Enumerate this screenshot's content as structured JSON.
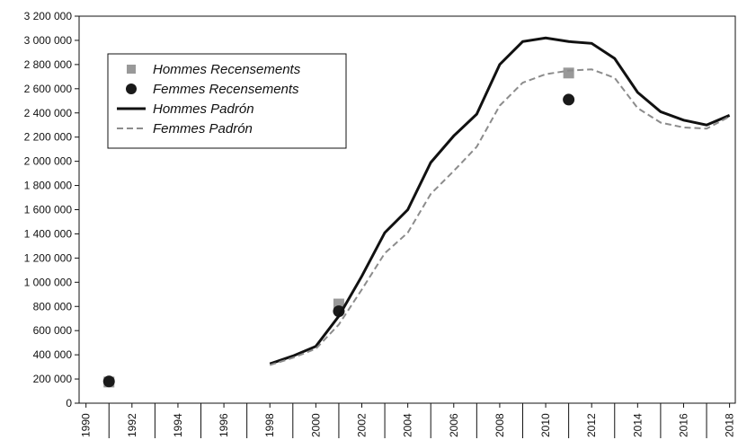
{
  "chart_data": {
    "type": "line",
    "xlim": [
      1989.7,
      2018.25
    ],
    "xticks": [
      1990,
      1992,
      1994,
      1996,
      1998,
      2000,
      2002,
      2004,
      2006,
      2008,
      2010,
      2012,
      2014,
      2016,
      2018
    ],
    "ylim": [
      0,
      3200000
    ],
    "yticks": [
      0,
      {
        "value": 200000,
        "label": "200 000"
      },
      {
        "value": 400000,
        "label": "400 000"
      },
      {
        "value": 600000,
        "label": "600 000"
      },
      {
        "value": 800000,
        "label": "800 000"
      },
      {
        "value": 1000000,
        "label": "1 000 000"
      },
      {
        "value": 1200000,
        "label": "1 200 000"
      },
      {
        "value": 1400000,
        "label": "1 400 000"
      },
      {
        "value": 1600000,
        "label": "1 600 000"
      },
      {
        "value": 1800000,
        "label": "1 800 000"
      },
      {
        "value": 2000000,
        "label": "2 000 000"
      },
      {
        "value": 2200000,
        "label": "2 200 000"
      },
      {
        "value": 2400000,
        "label": "2 400 000"
      },
      {
        "value": 2600000,
        "label": "2 600 000"
      },
      {
        "value": 2800000,
        "label": "2 800 000"
      },
      {
        "value": 3000000,
        "label": "3 000 000"
      },
      {
        "value": 3200000,
        "label": "3 200 000"
      }
    ],
    "series": [
      {
        "name": "Hommes Recensements",
        "color": "#999999",
        "style": "square",
        "x": [
          1991,
          2001,
          2011
        ],
        "values": [
          175000,
          820000,
          2730000
        ]
      },
      {
        "name": "Femmes Recensements",
        "color": "#1a1a1a",
        "style": "circle",
        "x": [
          1991,
          2001,
          2011
        ],
        "values": [
          180000,
          760000,
          2510000
        ]
      },
      {
        "name": "Hommes Padrón",
        "color": "#111111",
        "style": "solid",
        "x": [
          1998,
          1999,
          2000,
          2001,
          2002,
          2003,
          2004,
          2005,
          2006,
          2007,
          2008,
          2009,
          2010,
          2011,
          2012,
          2013,
          2014,
          2015,
          2016,
          2017,
          2018
        ],
        "values": [
          325000,
          390000,
          470000,
          720000,
          1050000,
          1410000,
          1600000,
          1990000,
          2210000,
          2390000,
          2800000,
          2990000,
          3020000,
          2990000,
          2975000,
          2850000,
          2570000,
          2410000,
          2340000,
          2300000,
          2380000
        ]
      },
      {
        "name": "Femmes Padrón",
        "color": "#8c8c8c",
        "style": "dashed",
        "x": [
          1998,
          1999,
          2000,
          2001,
          2002,
          2003,
          2004,
          2005,
          2006,
          2007,
          2008,
          2009,
          2010,
          2011,
          2012,
          2013,
          2014,
          2015,
          2016,
          2017,
          2018
        ],
        "values": [
          315000,
          375000,
          450000,
          650000,
          940000,
          1240000,
          1410000,
          1730000,
          1920000,
          2120000,
          2460000,
          2650000,
          2720000,
          2750000,
          2760000,
          2690000,
          2440000,
          2320000,
          2280000,
          2270000,
          2370000
        ]
      }
    ]
  }
}
